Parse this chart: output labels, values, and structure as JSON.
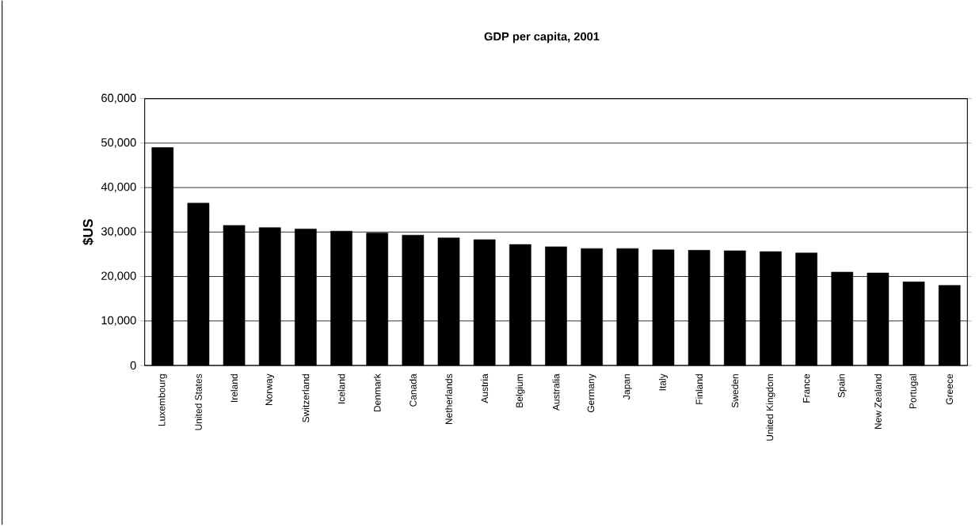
{
  "chart_data": {
    "type": "bar",
    "title": "GDP per capita, 2001",
    "ylabel": "$US",
    "categories": [
      "Luxembourg",
      "United States",
      "Ireland",
      "Norway",
      "Switzerland",
      "Iceland",
      "Denmark",
      "Canada",
      "Netherlands",
      "Austria",
      "Belgium",
      "Australia",
      "Germany",
      "Japan",
      "Italy",
      "Finland",
      "Sweden",
      "United Kingdom",
      "France",
      "Spain",
      "New Zealand",
      "Portugal",
      "Greece"
    ],
    "values": [
      49000,
      36500,
      31500,
      31000,
      30700,
      30200,
      29800,
      29300,
      28700,
      28300,
      27200,
      26700,
      26300,
      26300,
      26000,
      25900,
      25800,
      25600,
      25300,
      21000,
      20800,
      18800,
      18000
    ],
    "color": "#000000",
    "ylim": [
      0,
      60000
    ],
    "yticks": [
      0,
      {
        "value": 10000,
        "label": "10,000"
      },
      {
        "value": 20000,
        "label": "20,000"
      },
      {
        "value": 30000,
        "label": "30,000"
      },
      {
        "value": 40000,
        "label": "40,000"
      },
      {
        "value": 50000,
        "label": "50,000"
      },
      {
        "value": 60000,
        "label": "60,000"
      }
    ],
    "grid": "y"
  }
}
